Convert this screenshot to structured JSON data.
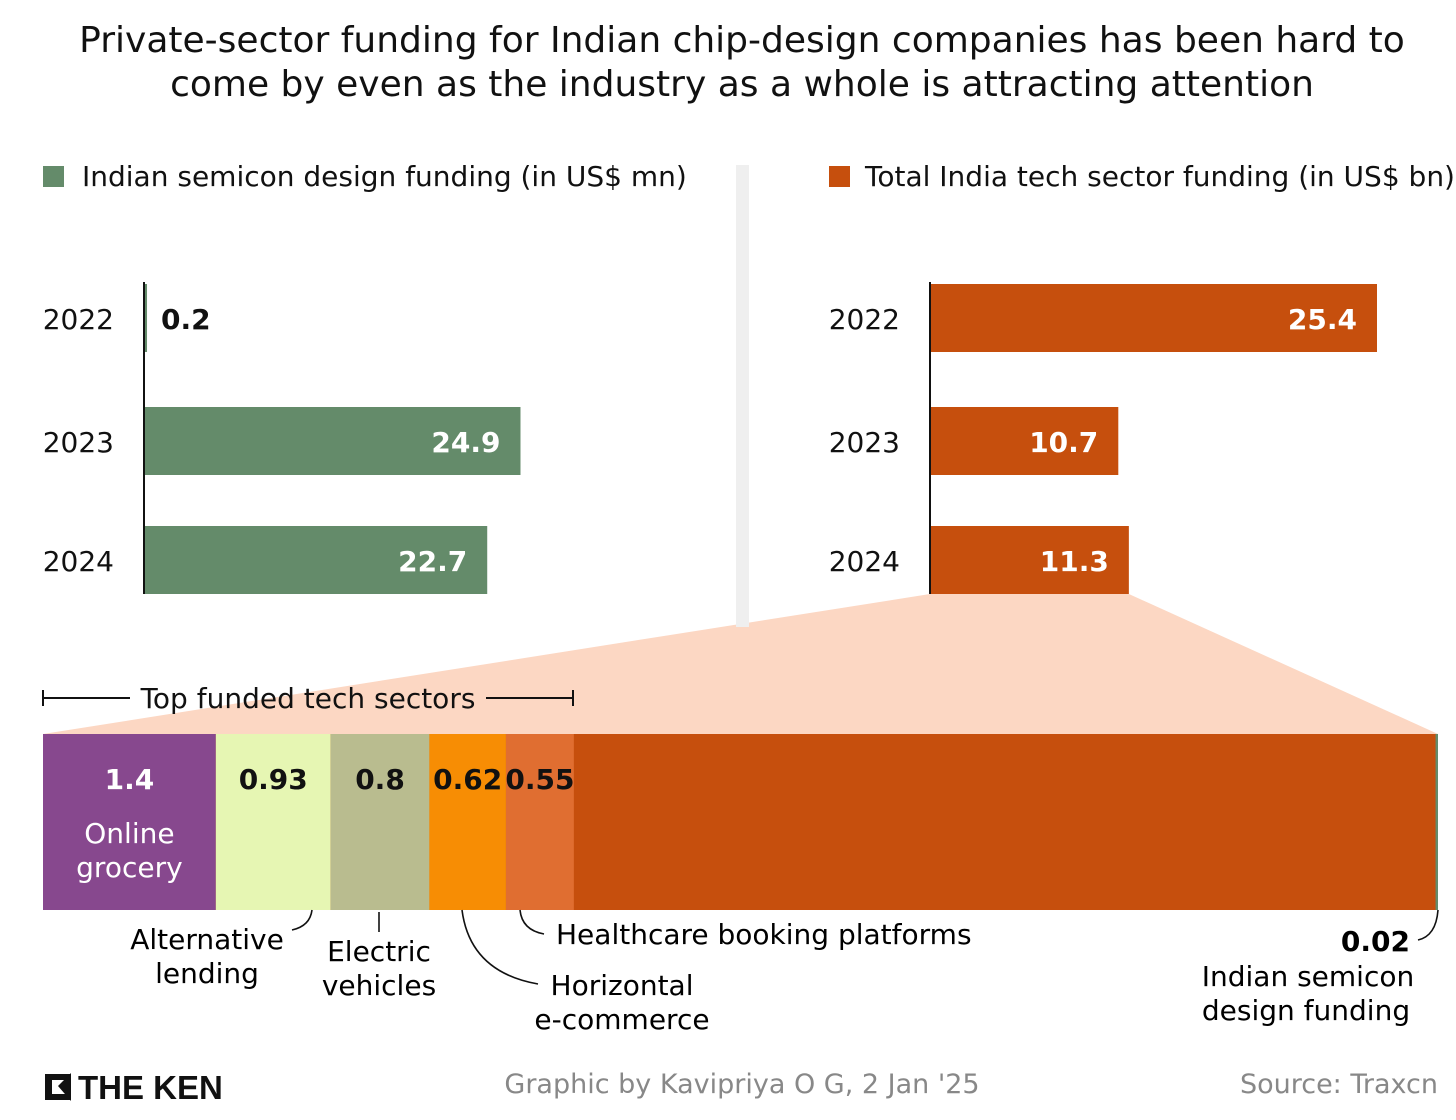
{
  "header": {
    "subtitle_line1": "Private-sector funding for Indian chip-design companies has been hard to",
    "subtitle_line2": "come by even as the industry as a whole is attracting attention"
  },
  "colors": {
    "semicon": "#648b6a",
    "tech": "#c64f0d",
    "zoom": "#fcd7c3",
    "online_grocery": "#87488e",
    "alternative_lending": "#e6f6b3",
    "electric_vehicles": "#b9bc8f",
    "horizontal_ecommerce": "#f78d04",
    "healthcare_booking": "#e06e31",
    "rest": "#c64f0d"
  },
  "chart_data": [
    {
      "type": "bar",
      "orientation": "horizontal",
      "legend": "Indian semicon design funding (in US$ mn)",
      "categories": [
        "2022",
        "2023",
        "2024"
      ],
      "values": [
        0.2,
        24.9,
        22.7
      ],
      "value_labels": [
        "0.2",
        "24.9",
        "22.7"
      ],
      "xlim": [
        0,
        25.0
      ],
      "grid": false,
      "legend_position": "top-left"
    },
    {
      "type": "bar",
      "orientation": "horizontal",
      "legend": "Total India tech sector funding (in US$ bn)",
      "categories": [
        "2022",
        "2023",
        "2024"
      ],
      "values": [
        25.4,
        10.7,
        11.3
      ],
      "value_labels": [
        "25.4",
        "10.7",
        "11.3"
      ],
      "xlim": [
        0,
        25.4
      ],
      "grid": false,
      "legend_position": "top-right"
    },
    {
      "type": "bar",
      "orientation": "stacked-horizontal",
      "annotation": "Top funded tech sectors",
      "total": 11.3,
      "segments": [
        {
          "name": "Online grocery",
          "value": 1.4,
          "value_label": "1.4"
        },
        {
          "name": "Alternative lending",
          "value": 0.93,
          "value_label": "0.93"
        },
        {
          "name": "Electric vehicles",
          "value": 0.8,
          "value_label": "0.8"
        },
        {
          "name": "Horizontal e-commerce",
          "value": 0.62,
          "value_label": "0.62"
        },
        {
          "name": "Healthcare booking platforms",
          "value": 0.55,
          "value_label": "0.55"
        }
      ],
      "highlight": {
        "name": "Indian semicon design funding",
        "value": 0.02,
        "value_label": "0.02"
      }
    }
  ],
  "footer": {
    "logo": "THE KEN",
    "credit": "Graphic by Kavipriya O G, 2 Jan '25",
    "source": "Source: Traxcn"
  }
}
